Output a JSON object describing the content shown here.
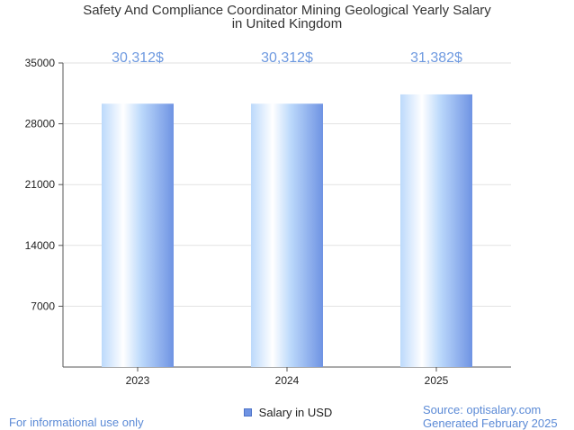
{
  "chart_data": {
    "type": "bar",
    "title": "Safety And Compliance Coordinator Mining Geological Yearly Salary",
    "subtitle": "in United Kingdom",
    "categories": [
      "2023",
      "2024",
      "2025"
    ],
    "series": [
      {
        "name": "Salary in USD",
        "values": [
          30312,
          30312,
          31382
        ]
      }
    ],
    "value_labels": [
      "30,312$",
      "30,312$",
      "31,382$"
    ],
    "ylim": [
      0,
      35000
    ],
    "yticks": [
      7000,
      14000,
      21000,
      28000,
      35000
    ],
    "grid": true,
    "legend_position": "bottom-center"
  },
  "colors": {
    "bar_light": "#ffffff",
    "bar_mid": "#bcd9fb",
    "bar_dark": "#6f93e3",
    "value_label": "#6f9ae0",
    "grid": "#e2e2e2",
    "axis": "#555555",
    "footer": "#5b8ad6"
  },
  "footer": {
    "disclaimer": "For informational use only",
    "source": "Source: optisalary.com",
    "generated": "Generated February 2025"
  }
}
